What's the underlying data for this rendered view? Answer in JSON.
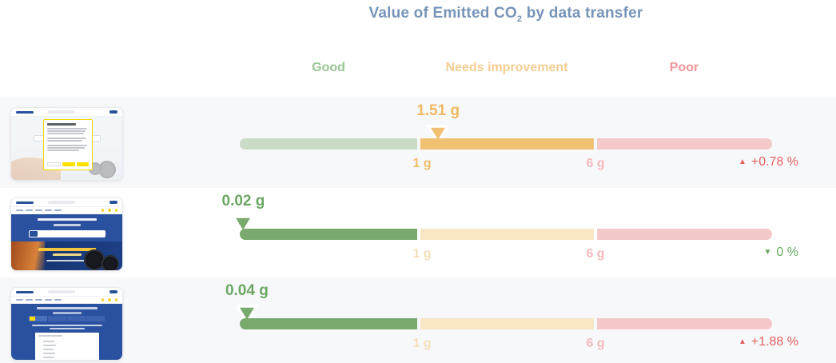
{
  "header": {
    "title_main": "Value of Emitted CO",
    "title_sub": "2",
    "title_tail": " by data transfer"
  },
  "zones": {
    "good_label": "Good",
    "needs_improvement_label": "Needs improvement",
    "poor_label": "Poor"
  },
  "colors": {
    "title": "#7794b8",
    "good_active": "#7aa96e",
    "good_muted": "#cadcc5",
    "needs_improvement_active": "#f0c173",
    "needs_improvement_muted": "#f8e6c5",
    "poor_muted": "#f5c8ca",
    "trend_up_red": "#e2625f",
    "trend_down_green": "#67a85f",
    "row_alt_background": "#f7f8fa"
  },
  "chart_data": {
    "type": "bullet",
    "title": "Value of Emitted CO2 by data transfer",
    "unit": "g",
    "zone_ranges": {
      "good": [
        0,
        1
      ],
      "needs_improvement": [
        1,
        6
      ],
      "poor_start": 6
    },
    "axis_ticks": [
      "1 g",
      "6 g"
    ],
    "legend_position": "top",
    "rows": [
      {
        "value": 1.51,
        "value_label": "1.51 g",
        "active_zone": "needs-improvement",
        "tick_1": "1 g",
        "tick_6": "6 g",
        "trend": "up",
        "trend_icon": "▲",
        "change": "+0.78 %"
      },
      {
        "value": 0.02,
        "value_label": "0.02 g",
        "active_zone": "good",
        "tick_1": "1 g",
        "tick_6": "6 g",
        "trend": "down",
        "trend_icon": "▼",
        "change": "0 %"
      },
      {
        "value": 0.04,
        "value_label": "0.04 g",
        "active_zone": "good",
        "tick_1": "1 g",
        "tick_6": "6 g",
        "trend": "up",
        "trend_icon": "▲",
        "change": "+1.88 %"
      }
    ]
  }
}
